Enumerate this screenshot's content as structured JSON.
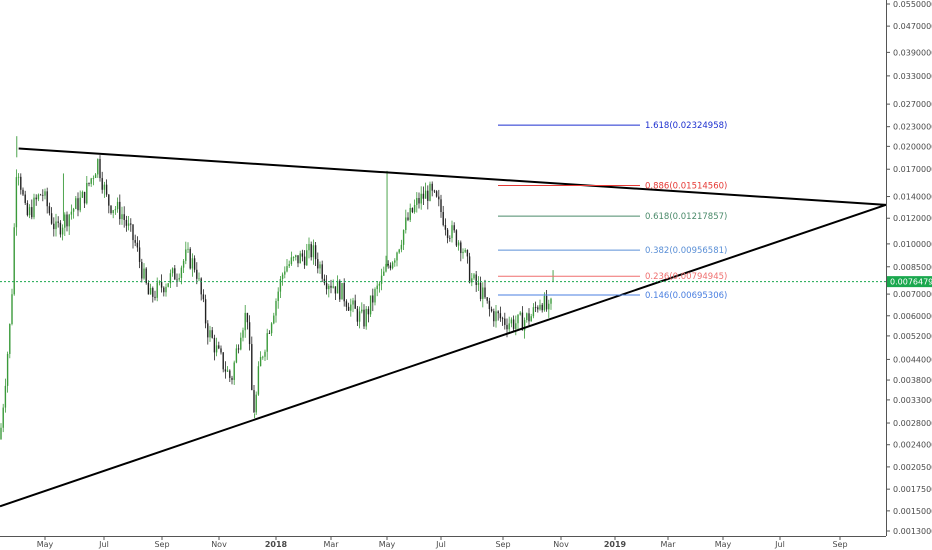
{
  "chart_data": {
    "type": "candlestick",
    "title": "",
    "scale": "log",
    "ylim": [
      0.00128,
      0.0578
    ],
    "x_tick_labels": [
      "May",
      "Jul",
      "Sep",
      "Nov",
      "2018",
      "Mar",
      "May",
      "Jul",
      "Sep",
      "Nov",
      "2019",
      "Mar",
      "May",
      "Jul",
      "Sep"
    ],
    "x_tick_bold": [
      "2018",
      "2019"
    ],
    "y_tick_labels": [
      "0.05500000",
      "0.04700000",
      "0.03900000",
      "0.03300000",
      "0.02700000",
      "0.02300000",
      "0.02000000",
      "0.01700000",
      "0.01400000",
      "0.01200000",
      "0.01000000",
      "0.00850000",
      "0.00700000",
      "0.00600000",
      "0.00520000",
      "0.00440000",
      "0.00380000",
      "0.00330000",
      "0.00280000",
      "0.00240000",
      "0.00205000",
      "0.00175000",
      "0.00150000",
      "0.00130000"
    ],
    "last_price": "0.00764798",
    "fib_levels": [
      {
        "label": "1.618(0.02324958)",
        "value": 0.02324958,
        "color": "#1c2fcf"
      },
      {
        "label": "0.886(0.01514560)",
        "value": 0.0151456,
        "color": "#e53935"
      },
      {
        "label": "0.618(0.01217857)",
        "value": 0.01217857,
        "color": "#4a8a6a"
      },
      {
        "label": "0.382(0.00956581)",
        "value": 0.00956581,
        "color": "#5a8fd6"
      },
      {
        "label": "0.236(0.00794945)",
        "value": 0.00794945,
        "color": "#ef6f6f"
      },
      {
        "label": "0.146(0.00695306)",
        "value": 0.00695306,
        "color": "#4a7fe0"
      }
    ],
    "trendlines": [
      {
        "name": "upper",
        "from": [
          0.02,
          0.0197
        ],
        "to": [
          0.95,
          0.0132
        ]
      },
      {
        "name": "lower",
        "from": [
          0.0,
          0.00155
        ],
        "to": [
          0.95,
          0.0132
        ]
      }
    ],
    "price_path": [
      [
        0.0,
        0.0025
      ],
      [
        0.012,
        0.0062
      ],
      [
        0.018,
        0.0185
      ],
      [
        0.028,
        0.012
      ],
      [
        0.045,
        0.0145
      ],
      [
        0.06,
        0.011
      ],
      [
        0.075,
        0.0125
      ],
      [
        0.09,
        0.014
      ],
      [
        0.105,
        0.018
      ],
      [
        0.115,
        0.0135
      ],
      [
        0.13,
        0.0125
      ],
      [
        0.145,
        0.01
      ],
      [
        0.16,
        0.0068
      ],
      [
        0.175,
        0.0075
      ],
      [
        0.19,
        0.0082
      ],
      [
        0.2,
        0.0092
      ],
      [
        0.21,
        0.0085
      ],
      [
        0.222,
        0.0055
      ],
      [
        0.235,
        0.0045
      ],
      [
        0.248,
        0.0038
      ],
      [
        0.258,
        0.0055
      ],
      [
        0.265,
        0.0062
      ],
      [
        0.27,
        0.0035
      ],
      [
        0.273,
        0.003
      ],
      [
        0.278,
        0.0042
      ],
      [
        0.29,
        0.0058
      ],
      [
        0.305,
        0.0085
      ],
      [
        0.32,
        0.009
      ],
      [
        0.335,
        0.0095
      ],
      [
        0.35,
        0.0078
      ],
      [
        0.365,
        0.0072
      ],
      [
        0.38,
        0.0062
      ],
      [
        0.39,
        0.0058
      ],
      [
        0.4,
        0.0068
      ],
      [
        0.41,
        0.0078
      ],
      [
        0.415,
        0.0085
      ],
      [
        0.425,
        0.0095
      ],
      [
        0.435,
        0.0115
      ],
      [
        0.448,
        0.0135
      ],
      [
        0.46,
        0.0145
      ],
      [
        0.47,
        0.0132
      ],
      [
        0.48,
        0.0112
      ],
      [
        0.495,
        0.01
      ],
      [
        0.505,
        0.0078
      ],
      [
        0.515,
        0.0072
      ],
      [
        0.525,
        0.0062
      ],
      [
        0.54,
        0.0058
      ],
      [
        0.555,
        0.0057
      ],
      [
        0.57,
        0.006
      ],
      [
        0.58,
        0.0068
      ],
      [
        0.59,
        0.006
      ],
      [
        0.593,
        0.00765
      ]
    ],
    "colors": {
      "up": "#3a9a3a",
      "down": "#222222",
      "price_line": "#1aa84e",
      "price_tag": "#1aa84e"
    }
  }
}
